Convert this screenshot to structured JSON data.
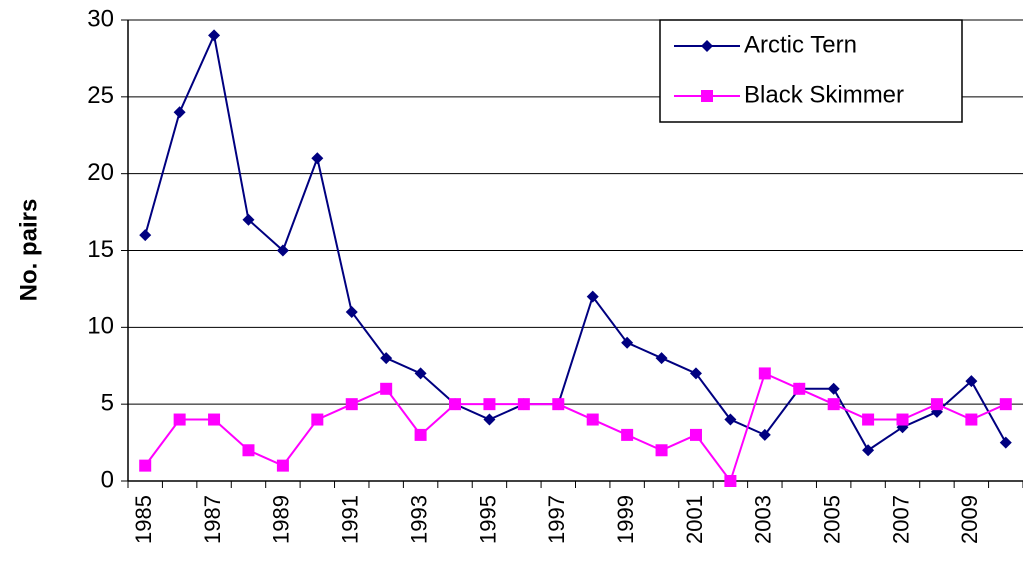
{
  "chart_data": {
    "type": "line",
    "ylabel": "No. pairs",
    "categories": [
      "1985",
      null,
      "1987",
      null,
      "1989",
      null,
      "1991",
      null,
      "1993",
      null,
      "1995",
      null,
      "1997",
      null,
      "1999",
      null,
      "2001",
      null,
      "2003",
      null,
      "2005",
      null,
      "2007",
      null,
      "2009",
      null
    ],
    "series": [
      {
        "name": "Arctic Tern",
        "color": "#000080",
        "marker": "diamond",
        "values": [
          16,
          24,
          29,
          17,
          15,
          21,
          11,
          8,
          7,
          5,
          4,
          5,
          5,
          12,
          9,
          8,
          7,
          4,
          3,
          6,
          6,
          2,
          3.5,
          4.5,
          6.5,
          2.5
        ]
      },
      {
        "name": "Black Skimmer",
        "color": "#ff00ff",
        "marker": "square",
        "values": [
          1,
          4,
          4,
          2,
          1,
          4,
          5,
          6,
          3,
          5,
          5,
          5,
          5,
          4,
          3,
          2,
          3,
          0,
          7,
          6,
          5,
          4,
          4,
          5,
          4,
          5
        ]
      }
    ],
    "ylim": [
      0,
      30
    ],
    "yticks": [
      0,
      5,
      10,
      15,
      20,
      25,
      30
    ],
    "grid": true,
    "legend": "top-right"
  }
}
